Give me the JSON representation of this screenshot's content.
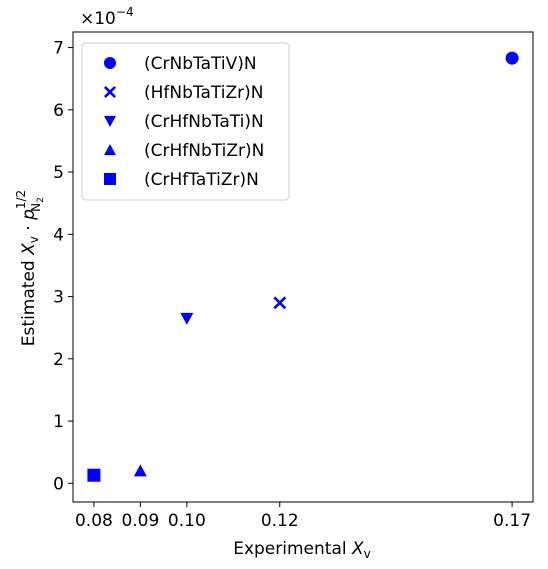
{
  "chart_data": {
    "type": "scatter",
    "scale_factor": "×10",
    "scale_exponent": "−4",
    "xlabel_prefix": "Experimental ",
    "xlabel_symbol": "X",
    "xlabel_sub": "v",
    "ylabel_prefix": "Estimated ",
    "ylabel_symbol": "X",
    "ylabel_sub": "v",
    "ylabel_op": " · ",
    "ylabel_p": "p",
    "ylabel_p_sup": "1/2",
    "ylabel_p_sub_n": "N",
    "ylabel_p_sub_2": "2",
    "xlim": [
      0.0755,
      0.1745
    ],
    "ylim": [
      -0.3,
      7.25
    ],
    "x_ticks": [
      0.08,
      0.09,
      0.1,
      0.12,
      0.17
    ],
    "x_tick_labels": [
      "0.08",
      "0.09",
      "0.10",
      "0.12",
      "0.17"
    ],
    "y_ticks": [
      0,
      1,
      2,
      3,
      4,
      5,
      6,
      7
    ],
    "y_tick_labels": [
      "0",
      "1",
      "2",
      "3",
      "4",
      "5",
      "6",
      "7"
    ],
    "legend_position": "upper-left",
    "color": "#0000ff",
    "grid": false,
    "series": [
      {
        "name": "(CrNbTaTiV)N",
        "marker": "circle",
        "x": [
          0.17
        ],
        "y": [
          6.83
        ]
      },
      {
        "name": "(HfNbTaTiZr)N",
        "marker": "x",
        "x": [
          0.12
        ],
        "y": [
          2.9
        ]
      },
      {
        "name": "(CrHfNbTaTi)N",
        "marker": "triangle-down",
        "x": [
          0.1
        ],
        "y": [
          2.65
        ]
      },
      {
        "name": "(CrHfNbTiZr)N",
        "marker": "triangle-up",
        "x": [
          0.09
        ],
        "y": [
          0.2
        ]
      },
      {
        "name": "(CrHfTaTiZr)N",
        "marker": "square",
        "x": [
          0.08
        ],
        "y": [
          0.13
        ]
      }
    ]
  }
}
